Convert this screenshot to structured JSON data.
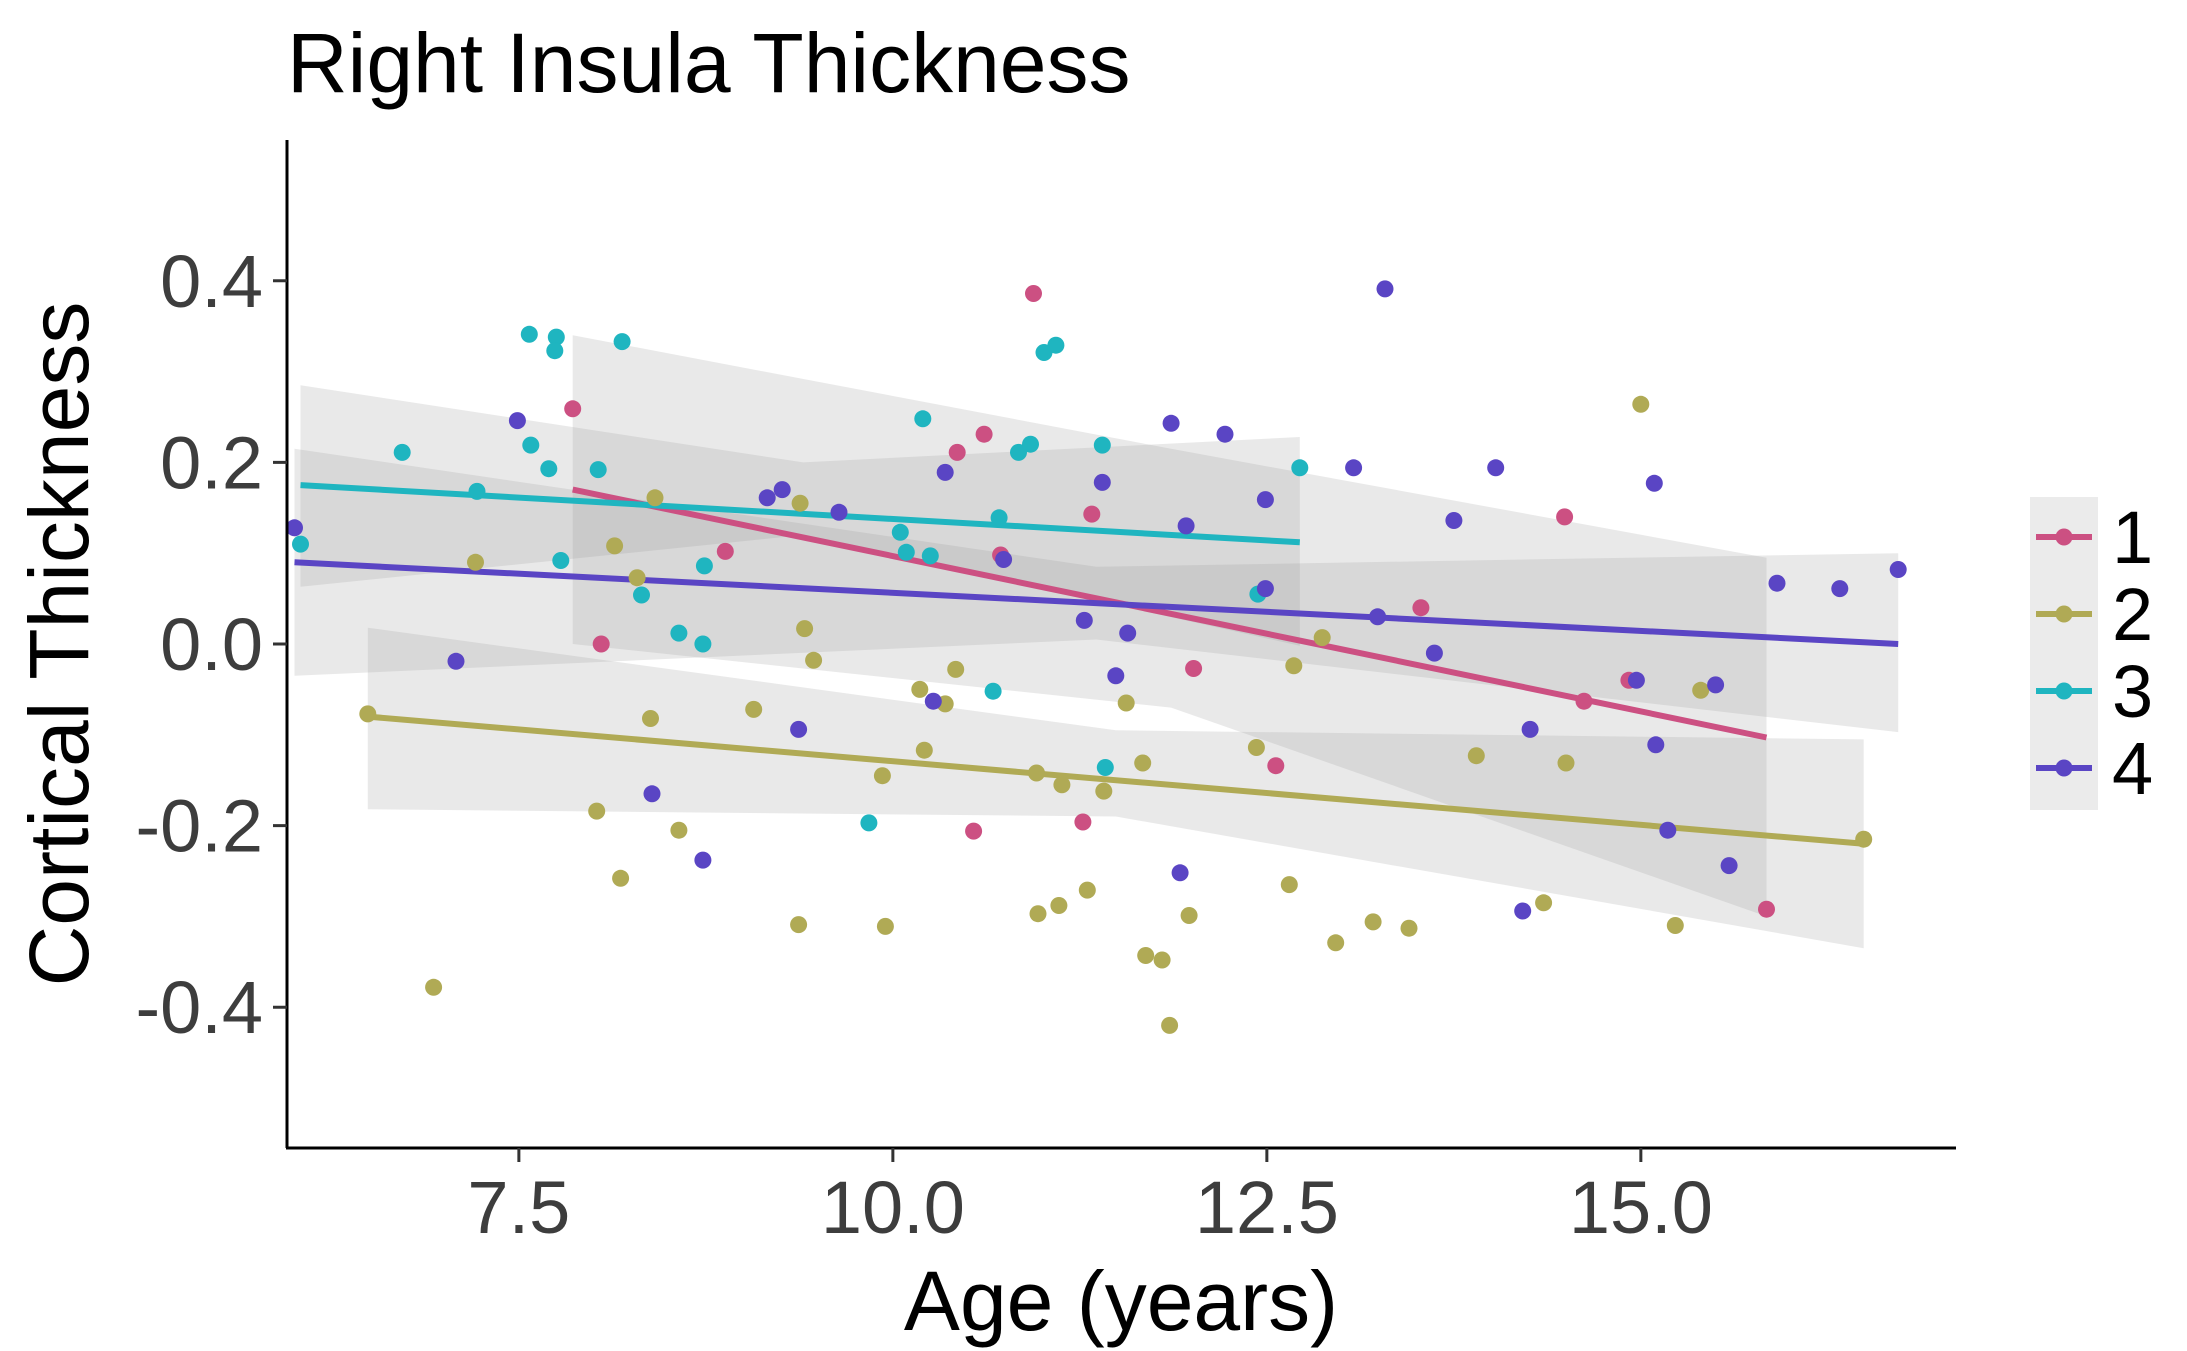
{
  "chart_data": {
    "type": "scatter",
    "title": "Right Insula Thickness",
    "xlabel": "Age (years)",
    "ylabel": "Cortical Thickness",
    "xlim": [
      5.95,
      17.1
    ],
    "ylim": [
      -0.555,
      0.555
    ],
    "x_ticks": [
      7.5,
      10.0,
      12.5,
      15.0
    ],
    "x_tick_labels": [
      "7.5",
      "10.0",
      "12.5",
      "15.0"
    ],
    "y_ticks": [
      -0.4,
      -0.2,
      0.0,
      0.2,
      0.4
    ],
    "y_tick_labels": [
      "-0.4",
      "-0.2",
      "0.0",
      "0.2",
      "0.4"
    ],
    "grid": false,
    "legend_position": "right",
    "series": [
      {
        "name": "1",
        "color": "#CC5082",
        "points": [
          [
            7.86,
            0.259
          ],
          [
            8.05,
            0.0
          ],
          [
            8.88,
            0.102
          ],
          [
            10.43,
            0.211
          ],
          [
            10.61,
            0.231
          ],
          [
            10.54,
            -0.206
          ],
          [
            10.72,
            0.098
          ],
          [
            10.94,
            0.386
          ],
          [
            11.27,
            -0.196
          ],
          [
            11.33,
            0.143
          ],
          [
            12.01,
            -0.027
          ],
          [
            12.56,
            -0.134
          ],
          [
            13.53,
            0.04
          ],
          [
            14.49,
            0.14
          ],
          [
            14.62,
            -0.063
          ],
          [
            14.92,
            -0.04
          ],
          [
            15.84,
            -0.292
          ]
        ],
        "fit": {
          "x": [
            7.86,
            15.84
          ],
          "y": [
            0.17,
            -0.103
          ]
        },
        "ci": {
          "x": [
            7.86,
            11.86,
            15.84
          ],
          "upper": [
            0.34,
            0.215,
            0.095
          ],
          "lower": [
            0.0,
            -0.07,
            -0.3
          ]
        }
      },
      {
        "name": "2",
        "color": "#B0AA55",
        "points": [
          [
            6.49,
            -0.077
          ],
          [
            6.93,
            -0.378
          ],
          [
            7.21,
            0.09
          ],
          [
            8.02,
            -0.184
          ],
          [
            8.14,
            0.108
          ],
          [
            8.18,
            -0.258
          ],
          [
            8.29,
            0.073
          ],
          [
            8.38,
            -0.082
          ],
          [
            8.41,
            0.161
          ],
          [
            8.57,
            -0.205
          ],
          [
            9.07,
            -0.072
          ],
          [
            9.37,
            -0.309
          ],
          [
            9.38,
            0.155
          ],
          [
            9.41,
            0.017
          ],
          [
            9.47,
            -0.018
          ],
          [
            9.93,
            -0.145
          ],
          [
            9.95,
            -0.311
          ],
          [
            10.18,
            -0.05
          ],
          [
            10.21,
            -0.117
          ],
          [
            10.35,
            -0.066
          ],
          [
            10.42,
            -0.028
          ],
          [
            10.96,
            -0.142
          ],
          [
            10.97,
            -0.297
          ],
          [
            11.11,
            -0.288
          ],
          [
            11.13,
            -0.155
          ],
          [
            11.3,
            -0.271
          ],
          [
            11.41,
            -0.162
          ],
          [
            11.56,
            -0.065
          ],
          [
            11.67,
            -0.131
          ],
          [
            11.69,
            -0.343
          ],
          [
            11.8,
            -0.348
          ],
          [
            11.85,
            -0.42
          ],
          [
            11.98,
            -0.299
          ],
          [
            12.43,
            -0.114
          ],
          [
            12.65,
            -0.265
          ],
          [
            12.68,
            -0.024
          ],
          [
            12.87,
            0.007
          ],
          [
            12.96,
            -0.329
          ],
          [
            13.21,
            -0.306
          ],
          [
            13.45,
            -0.313
          ],
          [
            13.9,
            -0.123
          ],
          [
            14.35,
            -0.285
          ],
          [
            14.5,
            -0.131
          ],
          [
            15.0,
            0.264
          ],
          [
            15.4,
            -0.051
          ],
          [
            15.23,
            -0.31
          ],
          [
            16.49,
            -0.215
          ]
        ],
        "fit": {
          "x": [
            6.49,
            16.49
          ],
          "y": [
            -0.08,
            -0.22
          ]
        },
        "ci": {
          "x": [
            6.49,
            11.49,
            16.49
          ],
          "upper": [
            0.018,
            -0.095,
            -0.105
          ],
          "lower": [
            -0.182,
            -0.19,
            -0.335
          ]
        }
      },
      {
        "name": "3",
        "color": "#1FB5C0",
        "points": [
          [
            6.04,
            0.11
          ],
          [
            6.72,
            0.211
          ],
          [
            7.22,
            0.168
          ],
          [
            7.57,
            0.341
          ],
          [
            7.58,
            0.219
          ],
          [
            7.7,
            0.193
          ],
          [
            7.75,
            0.338
          ],
          [
            7.74,
            0.323
          ],
          [
            7.78,
            0.092
          ],
          [
            8.03,
            0.192
          ],
          [
            8.19,
            0.333
          ],
          [
            8.32,
            0.054
          ],
          [
            8.57,
            0.012
          ],
          [
            8.74,
            0.086
          ],
          [
            8.73,
            0.0
          ],
          [
            9.84,
            -0.197
          ],
          [
            10.05,
            0.123
          ],
          [
            10.09,
            0.101
          ],
          [
            10.2,
            0.248
          ],
          [
            10.25,
            0.097
          ],
          [
            10.67,
            -0.052
          ],
          [
            10.71,
            0.139
          ],
          [
            10.84,
            0.211
          ],
          [
            10.92,
            0.22
          ],
          [
            11.01,
            0.321
          ],
          [
            11.09,
            0.329
          ],
          [
            11.4,
            0.219
          ],
          [
            11.42,
            -0.136
          ],
          [
            12.44,
            0.055
          ],
          [
            12.72,
            0.194
          ]
        ],
        "fit": {
          "x": [
            6.04,
            12.72
          ],
          "y": [
            0.175,
            0.112
          ]
        },
        "ci": {
          "x": [
            6.04,
            9.4,
            12.72
          ],
          "upper": [
            0.285,
            0.2,
            0.228
          ],
          "lower": [
            0.063,
            0.12,
            -0.002
          ]
        }
      },
      {
        "name": "4",
        "color": "#5A45C4",
        "points": [
          [
            6.0,
            0.128
          ],
          [
            7.08,
            -0.019
          ],
          [
            7.49,
            0.246
          ],
          [
            8.39,
            -0.165
          ],
          [
            8.73,
            -0.238
          ],
          [
            9.16,
            0.161
          ],
          [
            9.26,
            0.17
          ],
          [
            9.37,
            -0.094
          ],
          [
            9.64,
            0.145
          ],
          [
            10.27,
            -0.063
          ],
          [
            10.35,
            0.189
          ],
          [
            10.74,
            0.093
          ],
          [
            11.28,
            0.026
          ],
          [
            11.4,
            0.178
          ],
          [
            11.49,
            -0.035
          ],
          [
            11.57,
            0.012
          ],
          [
            11.86,
            0.243
          ],
          [
            11.92,
            -0.252
          ],
          [
            11.96,
            0.13
          ],
          [
            12.22,
            0.231
          ],
          [
            12.49,
            0.159
          ],
          [
            12.49,
            0.061
          ],
          [
            13.08,
            0.194
          ],
          [
            13.24,
            0.03
          ],
          [
            13.29,
            0.391
          ],
          [
            13.62,
            -0.01
          ],
          [
            13.75,
            0.136
          ],
          [
            14.03,
            0.194
          ],
          [
            14.21,
            -0.294
          ],
          [
            14.26,
            -0.094
          ],
          [
            14.97,
            -0.04
          ],
          [
            15.09,
            0.177
          ],
          [
            15.1,
            -0.111
          ],
          [
            15.18,
            -0.205
          ],
          [
            15.5,
            -0.045
          ],
          [
            15.59,
            -0.244
          ],
          [
            15.91,
            0.067
          ],
          [
            16.33,
            0.061
          ],
          [
            16.72,
            0.082
          ]
        ],
        "fit": {
          "x": [
            6.0,
            16.72
          ],
          "y": [
            0.09,
            0.0
          ]
        },
        "ci": {
          "x": [
            6.0,
            11.36,
            16.72
          ],
          "upper": [
            0.215,
            0.085,
            0.1
          ],
          "lower": [
            -0.035,
            0.005,
            -0.097
          ]
        }
      }
    ]
  }
}
